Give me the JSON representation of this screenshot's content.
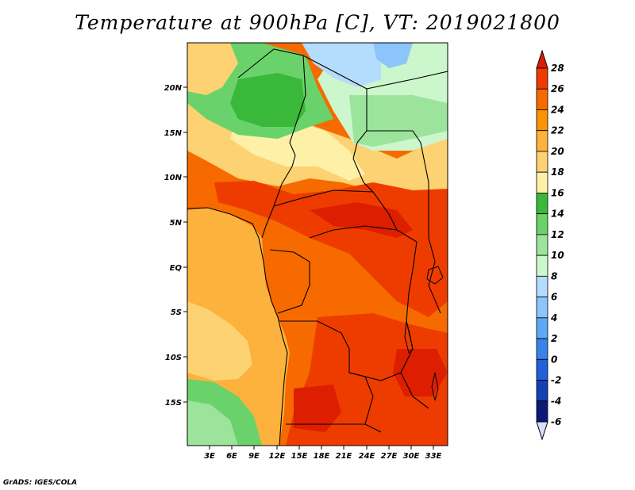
{
  "title": "Temperature at 900hPa [C], VT: 2019021800",
  "footer": "GrADS: IGES/COLA",
  "map": {
    "lat_labels": [
      "20N",
      "15N",
      "10N",
      "5N",
      "EQ",
      "5S",
      "10S",
      "15S"
    ],
    "lon_labels": [
      "3E",
      "6E",
      "9E",
      "12E",
      "15E",
      "18E",
      "21E",
      "24E",
      "27E",
      "30E",
      "33E"
    ],
    "variable": "Temperature at 900hPa",
    "units": "C"
  },
  "colorbar": {
    "labels": [
      "28",
      "26",
      "24",
      "22",
      "20",
      "18",
      "16",
      "14",
      "12",
      "10",
      "8",
      "6",
      "4",
      "2",
      "0",
      "-2",
      "-4",
      "-6"
    ],
    "colors": [
      "#dd1e00",
      "#ee3c00",
      "#f66a00",
      "#fa9400",
      "#fcb23c",
      "#fdd272",
      "#fff0a8",
      "#3ab83a",
      "#6ad26a",
      "#9ce49c",
      "#ccf6cc",
      "#b4dcfc",
      "#8cc4fc",
      "#5ea8f4",
      "#3a82ea",
      "#2060d8",
      "#1440b4",
      "#0a1a78"
    ],
    "over_color": "#dd1e00",
    "under_color": "#dcdcfc"
  },
  "colors": {
    "ocean": "#fcb23c",
    "land_base": "#f66a00"
  }
}
